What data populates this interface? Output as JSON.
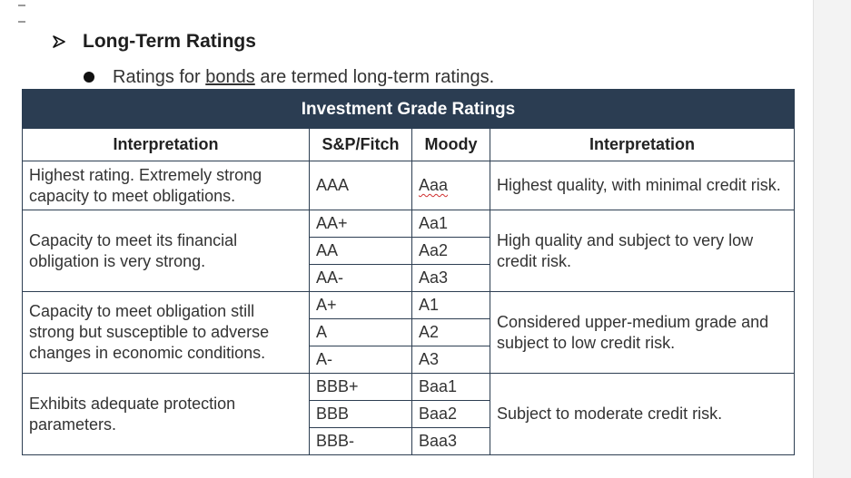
{
  "heading": "Long-Term Ratings",
  "subpoint": {
    "prefix": "Ratings for ",
    "link": "bonds",
    "suffix": " are termed long-term ratings."
  },
  "table": {
    "banner": "Investment Grade Ratings",
    "columns": [
      "Interpretation",
      "S&P/Fitch",
      "Moody",
      "Interpretation"
    ],
    "groups": [
      {
        "left": "Highest rating. Extremely strong capacity to meet obligations.",
        "right": "Highest quality, with minimal credit risk.",
        "rows": [
          {
            "sp": "AAA",
            "moody": "Aaa"
          }
        ]
      },
      {
        "left": "Capacity to meet its financial obligation is very strong.",
        "right": "High quality and subject to very low credit risk.",
        "rows": [
          {
            "sp": "AA+",
            "moody": "Aa1"
          },
          {
            "sp": "AA",
            "moody": "Aa2"
          },
          {
            "sp": "AA-",
            "moody": "Aa3"
          }
        ]
      },
      {
        "left": "Capacity to meet obligation still strong but susceptible to adverse changes in economic conditions.",
        "right": "Considered upper-medium grade and subject to low credit risk.",
        "rows": [
          {
            "sp": "A+",
            "moody": "A1"
          },
          {
            "sp": "A",
            "moody": "A2"
          },
          {
            "sp": "A-",
            "moody": "A3"
          }
        ]
      },
      {
        "left": "Exhibits adequate protection parameters.",
        "right": "Subject to moderate credit risk.",
        "rows": [
          {
            "sp": "BBB+",
            "moody": "Baa1"
          },
          {
            "sp": "BBB",
            "moody": "Baa2"
          },
          {
            "sp": "BBB-",
            "moody": "Baa3"
          }
        ]
      }
    ]
  },
  "colors": {
    "banner": "#2b3d52",
    "border": "#2d3e52",
    "spellcheck": "#d03030"
  }
}
